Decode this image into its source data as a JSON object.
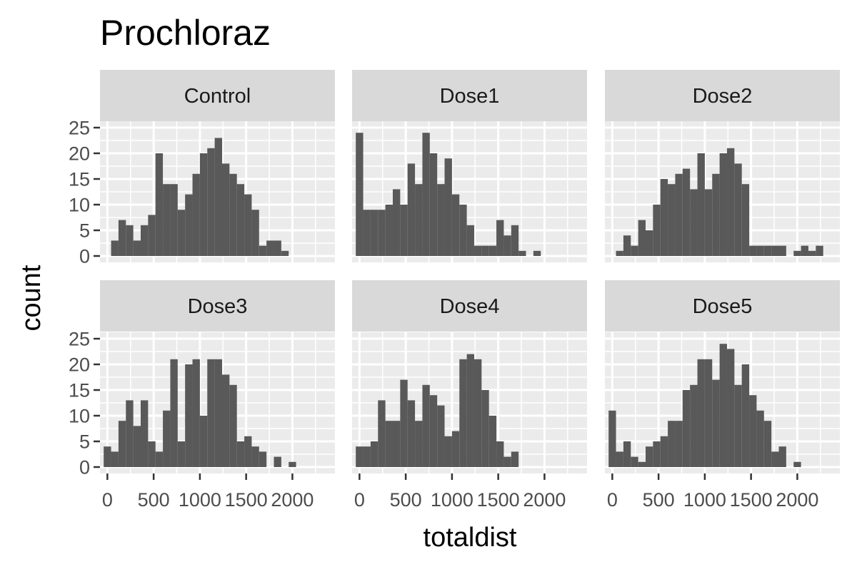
{
  "chart_data": {
    "type": "bar",
    "title": "Prochloraz",
    "xlabel": "totaldist",
    "ylabel": "count",
    "bin_width": 80,
    "xlim": [
      -80,
      2460
    ],
    "ylim": [
      -1.25,
      26.25
    ],
    "x_ticks": [
      0,
      500,
      1000,
      1500,
      2000
    ],
    "x_tick_labels": [
      "0",
      "500",
      "1000",
      "1500",
      "2000"
    ],
    "y_ticks": [
      0,
      5,
      10,
      15,
      20,
      25
    ],
    "y_tick_labels": [
      "0",
      "5",
      "10",
      "15",
      "20",
      "25"
    ],
    "grid": true,
    "facets": [
      {
        "label": "Control",
        "bin_start": 40,
        "counts": [
          3,
          7,
          6,
          3,
          6,
          8,
          20,
          14,
          14,
          9,
          12,
          16,
          20,
          21,
          23,
          18,
          16,
          14,
          12,
          9,
          2,
          3,
          3,
          1
        ]
      },
      {
        "label": "Dose1",
        "bin_start": -40,
        "counts": [
          24,
          9,
          9,
          9,
          10,
          13,
          10,
          18,
          14,
          24,
          20,
          14,
          19,
          12,
          10,
          6,
          2,
          2,
          2,
          7,
          4,
          6,
          1,
          0,
          1
        ]
      },
      {
        "label": "Dose2",
        "bin_start": 40,
        "counts": [
          1,
          4,
          2,
          7,
          5,
          10,
          15,
          14,
          16,
          17,
          13,
          20,
          13,
          16,
          20,
          21,
          18,
          14,
          2,
          2,
          2,
          2,
          2,
          0,
          1,
          2,
          1,
          2
        ]
      },
      {
        "label": "Dose3",
        "bin_start": -40,
        "counts": [
          4,
          3,
          9,
          13,
          8,
          13,
          5,
          3,
          11,
          21,
          5,
          20,
          21,
          10,
          21,
          21,
          18,
          16,
          5,
          6,
          4,
          3,
          0,
          2,
          0,
          1
        ]
      },
      {
        "label": "Dose4",
        "bin_start": -40,
        "counts": [
          4,
          4,
          5,
          13,
          9,
          9,
          17,
          13,
          9,
          16,
          14,
          12,
          6,
          7,
          21,
          22,
          21,
          15,
          10,
          5,
          2,
          3
        ]
      },
      {
        "label": "Dose5",
        "bin_start": -40,
        "counts": [
          11,
          3,
          5,
          2,
          1,
          4,
          5,
          6,
          9,
          9,
          15,
          16,
          21,
          21,
          17,
          24,
          23,
          16,
          20,
          14,
          11,
          9,
          3,
          4,
          0,
          1
        ]
      }
    ]
  }
}
